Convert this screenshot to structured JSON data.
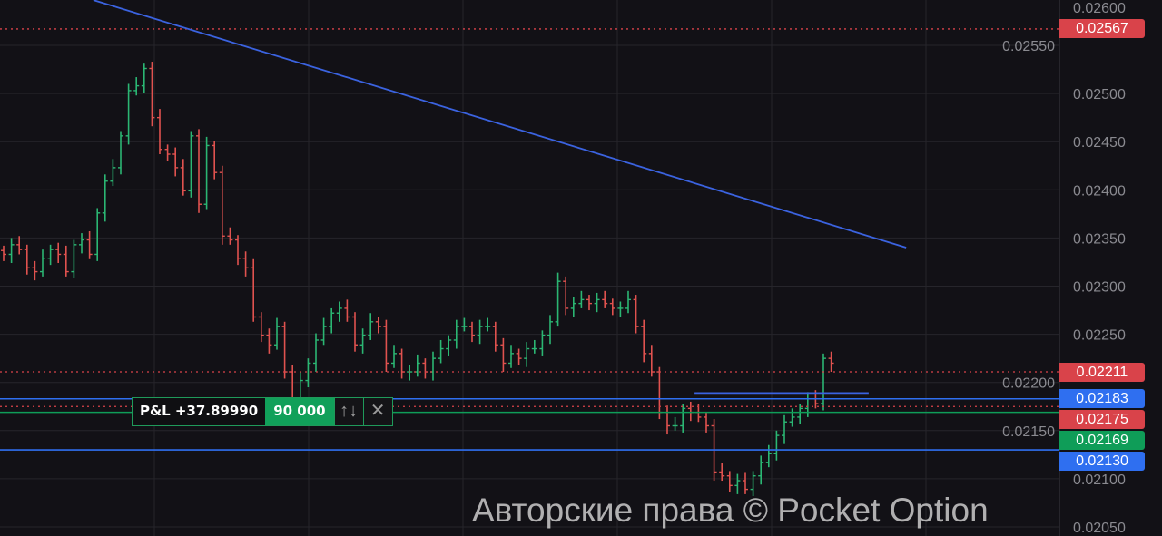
{
  "chart_data": {
    "type": "ohlc",
    "title": "",
    "xlabel": "",
    "ylabel": "",
    "ylim": [
      0.02045,
      0.02605
    ],
    "grid": true,
    "y_ticks": [
      "0.02600",
      "0.02550",
      "0.02500",
      "0.02450",
      "0.02400",
      "0.02350",
      "0.02300",
      "0.02250",
      "0.02200",
      "0.02150",
      "0.02100",
      "0.02050"
    ],
    "closes": [
      0.02333,
      0.02343,
      0.02338,
      0.02319,
      0.02315,
      0.02329,
      0.02338,
      0.02333,
      0.02315,
      0.02343,
      0.02348,
      0.02333,
      0.02376,
      0.02409,
      0.02423,
      0.02456,
      0.02503,
      0.02508,
      0.02526,
      0.02475,
      0.02442,
      0.02437,
      0.02423,
      0.02399,
      0.02456,
      0.02385,
      0.02446,
      0.02418,
      0.02352,
      0.02348,
      0.02329,
      0.02319,
      0.02268,
      0.02249,
      0.02239,
      0.02258,
      0.02211,
      0.02173,
      0.02202,
      0.0222,
      0.02244,
      0.02258,
      0.02272,
      0.02277,
      0.02268,
      0.02239,
      0.02249,
      0.02263,
      0.02258,
      0.0222,
      0.0223,
      0.02211,
      0.02211,
      0.0222,
      0.02211,
      0.02225,
      0.02235,
      0.02244,
      0.02258,
      0.02258,
      0.02249,
      0.02258,
      0.02258,
      0.02239,
      0.0222,
      0.0223,
      0.02225,
      0.02235,
      0.02235,
      0.02249,
      0.02263,
      0.02305,
      0.02277,
      0.02282,
      0.02286,
      0.02282,
      0.02286,
      0.02282,
      0.02277,
      0.02277,
      0.02286,
      0.02258,
      0.0223,
      0.02211,
      0.02169,
      0.02155,
      0.02155,
      0.02173,
      0.02169,
      0.02164,
      0.02155,
      0.02107,
      0.02103,
      0.02093,
      0.02098,
      0.02089,
      0.02103,
      0.02117,
      0.02126,
      0.02145,
      0.02159,
      0.02164,
      0.02173,
      0.02183,
      0.02178,
      0.02225,
      0.0222
    ],
    "price_lines": [
      {
        "price": "0.02567",
        "style": "dotted",
        "color": "#d9434a"
      },
      {
        "price": "0.02211",
        "style": "dotted",
        "color": "#d9434a"
      },
      {
        "price": "0.02183",
        "style": "solid",
        "color": "#2f6ff0"
      },
      {
        "price": "0.02175",
        "style": "dotted",
        "color": "#d9434a"
      },
      {
        "price": "0.02169",
        "style": "solid",
        "color": "#0f9d58"
      },
      {
        "price": "0.02130",
        "style": "solid",
        "color": "#2f6ff0"
      }
    ],
    "trendline": {
      "from": {
        "bar": 11.5,
        "price": 0.02597
      },
      "to": {
        "bar": 115.6,
        "price": 0.0234
      },
      "color": "#3b63e0"
    },
    "level_segment": {
      "from_bar": 88.5,
      "to_bar": 110.8,
      "price": 0.02189,
      "color": "#3b63e0"
    },
    "colors": {
      "up": "#2bb673",
      "down": "#e0524f",
      "background": "#121116",
      "grid": "#26252b"
    }
  },
  "trade_widget": {
    "pnl": "P&L +37.89990",
    "amount": "90 000",
    "swap_icon": "↑↓",
    "close_icon": "✕"
  },
  "watermark": "Авторские права © Pocket Option"
}
